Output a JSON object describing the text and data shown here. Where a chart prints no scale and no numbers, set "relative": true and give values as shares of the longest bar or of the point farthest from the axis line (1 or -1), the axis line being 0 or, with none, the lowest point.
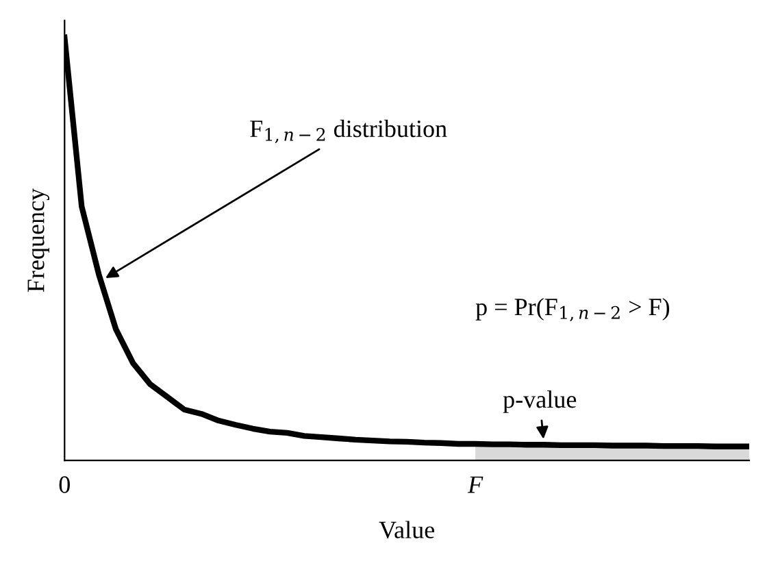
{
  "chart_data": {
    "type": "line",
    "relative": true,
    "xlabel": "Value",
    "ylabel": "Frequency",
    "tick_labels": "x",
    "grid": false,
    "legend": false,
    "marker": "none",
    "line_style": "solid",
    "categories": [
      "0",
      null,
      null,
      null,
      null,
      null,
      null,
      null,
      null,
      null,
      null,
      null,
      null,
      null,
      null,
      null,
      null,
      null,
      null,
      null,
      null,
      null,
      null,
      null,
      "F",
      null,
      null,
      null,
      null,
      null,
      null,
      null,
      null,
      null,
      null,
      null,
      null,
      null,
      null,
      null,
      null
    ],
    "series": [
      {
        "type": "area",
        "color": "#d9d9d9",
        "values": [
          null,
          null,
          null,
          null,
          null,
          null,
          null,
          null,
          null,
          null,
          null,
          null,
          null,
          null,
          null,
          null,
          null,
          null,
          null,
          null,
          null,
          null,
          null,
          null,
          0.039,
          0.038,
          0.038,
          0.037,
          0.037,
          0.036,
          0.036,
          0.036,
          0.035,
          0.035,
          0.035,
          0.034,
          0.034,
          0.034,
          0.033,
          0.033,
          0.033
        ]
      },
      {
        "color": "#000000",
        "values": [
          1.0,
          0.6,
          0.44,
          0.31,
          0.23,
          0.18,
          0.15,
          0.12,
          0.11,
          0.094,
          0.084,
          0.075,
          0.068,
          0.065,
          0.058,
          0.055,
          0.052,
          0.049,
          0.047,
          0.045,
          0.044,
          0.042,
          0.041,
          0.039,
          0.039,
          0.038,
          0.038,
          0.037,
          0.037,
          0.036,
          0.036,
          0.036,
          0.035,
          0.035,
          0.035,
          0.034,
          0.034,
          0.034,
          0.033,
          0.033,
          0.033
        ]
      }
    ],
    "annotations": [
      "F$_{1,n−2}$ distribution",
      "p = Pr(F$_{1,n−2}$ > F)",
      "p-value"
    ]
  }
}
